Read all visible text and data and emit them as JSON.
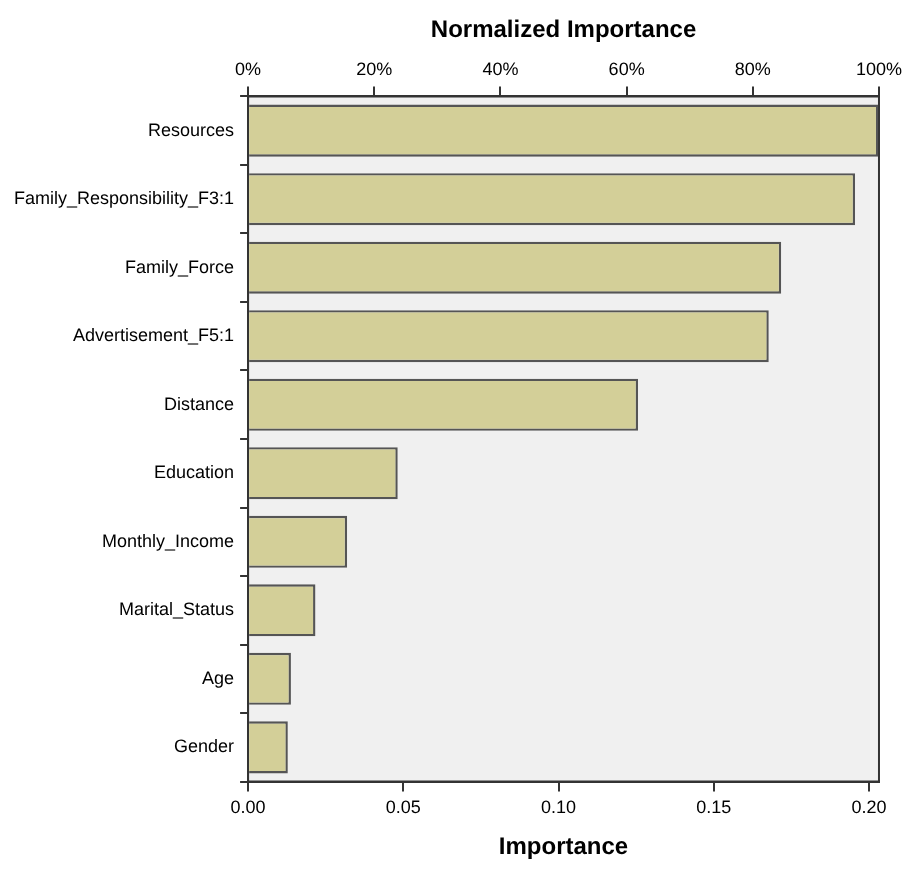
{
  "chart_data": {
    "type": "bar",
    "orientation": "horizontal",
    "x2label": "Normalized Importance",
    "xlabel": "Importance",
    "categories": [
      "Resources",
      "Family_Responsibility_F3:1",
      "Family_Force",
      "Advertisement_F5:1",
      "Distance",
      "Education",
      "Monthly_Income",
      "Marital_Status",
      "Age",
      "Gender"
    ],
    "values": [
      0.203,
      0.1955,
      0.1717,
      0.1677,
      0.1256,
      0.0482,
      0.0319,
      0.0217,
      0.0138,
      0.0128
    ],
    "color": "#d3cf98",
    "xlim": [
      0,
      0.2032
    ],
    "xticks": [
      {
        "value": 0,
        "label": "0.00"
      },
      {
        "value": 0.05,
        "label": "0.05"
      },
      {
        "value": 0.1,
        "label": "0.10"
      },
      {
        "value": 0.15,
        "label": "0.15"
      },
      {
        "value": 0.2,
        "label": "0.20"
      }
    ],
    "x2lim": [
      0,
      100
    ],
    "x2ticks": [
      {
        "value": 0,
        "label": "0%"
      },
      {
        "value": 20,
        "label": "20%"
      },
      {
        "value": 40,
        "label": "40%"
      },
      {
        "value": 60,
        "label": "60%"
      },
      {
        "value": 80,
        "label": "80%"
      },
      {
        "value": 100,
        "label": "100%"
      }
    ],
    "grid": false,
    "legend": false
  }
}
